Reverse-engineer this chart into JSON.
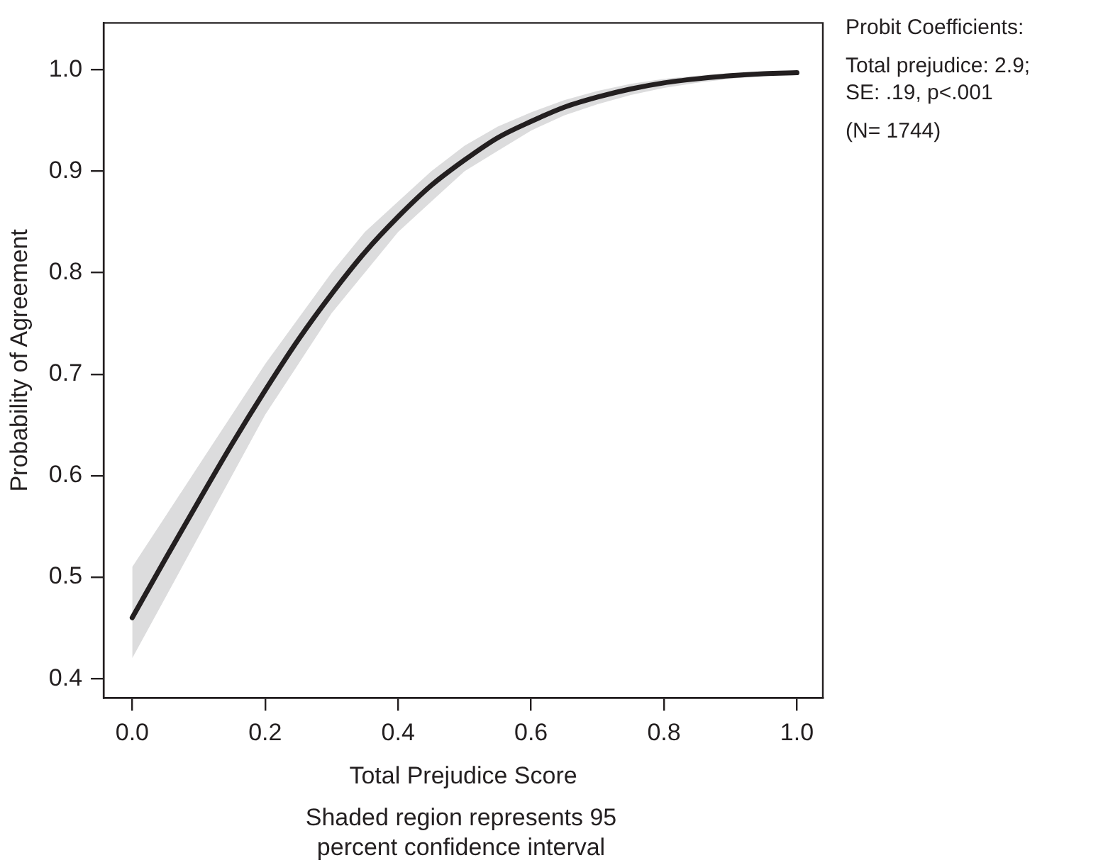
{
  "chart_data": {
    "type": "line",
    "xlabel": "Total Prejudice Score",
    "ylabel": "Probability of Agreement",
    "x": [
      0,
      0.05,
      0.1,
      0.15,
      0.2,
      0.25,
      0.3,
      0.35,
      0.4,
      0.45,
      0.5,
      0.55,
      0.6,
      0.65,
      0.7,
      0.75,
      0.8,
      0.85,
      0.9,
      0.95,
      1.0
    ],
    "series": [
      {
        "color": "#231f20",
        "values": [
          0.46,
          0.518,
          0.575,
          0.631,
          0.684,
          0.734,
          0.779,
          0.82,
          0.855,
          0.886,
          0.911,
          0.933,
          0.949,
          0.963,
          0.973,
          0.981,
          0.987,
          0.991,
          0.994,
          0.996,
          0.997
        ],
        "lower": [
          0.42,
          0.48,
          0.54,
          0.6,
          0.66,
          0.71,
          0.76,
          0.8,
          0.84,
          0.87,
          0.9,
          0.92,
          0.94,
          0.955,
          0.966,
          0.975,
          0.982,
          0.987,
          0.991,
          0.994,
          0.995
        ],
        "upper": [
          0.51,
          0.56,
          0.61,
          0.66,
          0.71,
          0.755,
          0.8,
          0.84,
          0.87,
          0.9,
          0.925,
          0.944,
          0.958,
          0.97,
          0.979,
          0.986,
          0.991,
          0.994,
          0.996,
          0.998,
          0.999
        ]
      }
    ],
    "xlim": [
      -0.043,
      1.039
    ],
    "xticks": [
      {
        "value": 0,
        "label": "0.0"
      },
      0.2,
      0.4,
      0.6,
      0.8,
      {
        "value": 1,
        "label": "1.0"
      }
    ],
    "ylim": [
      0.381,
      1.046
    ],
    "yticks": [
      0.4,
      0.5,
      0.6,
      0.7,
      0.8,
      0.9,
      {
        "value": 1,
        "label": "1.0"
      }
    ],
    "grid": false,
    "legend": false,
    "marker": "none",
    "line_style": "solid",
    "annotations": [
      "Probit Coefficients:",
      "Total prejudice: 2.9; SE: .19, p<.001",
      "(N= 1744)",
      "Shaded region represents 95 percent confidence interval"
    ]
  }
}
